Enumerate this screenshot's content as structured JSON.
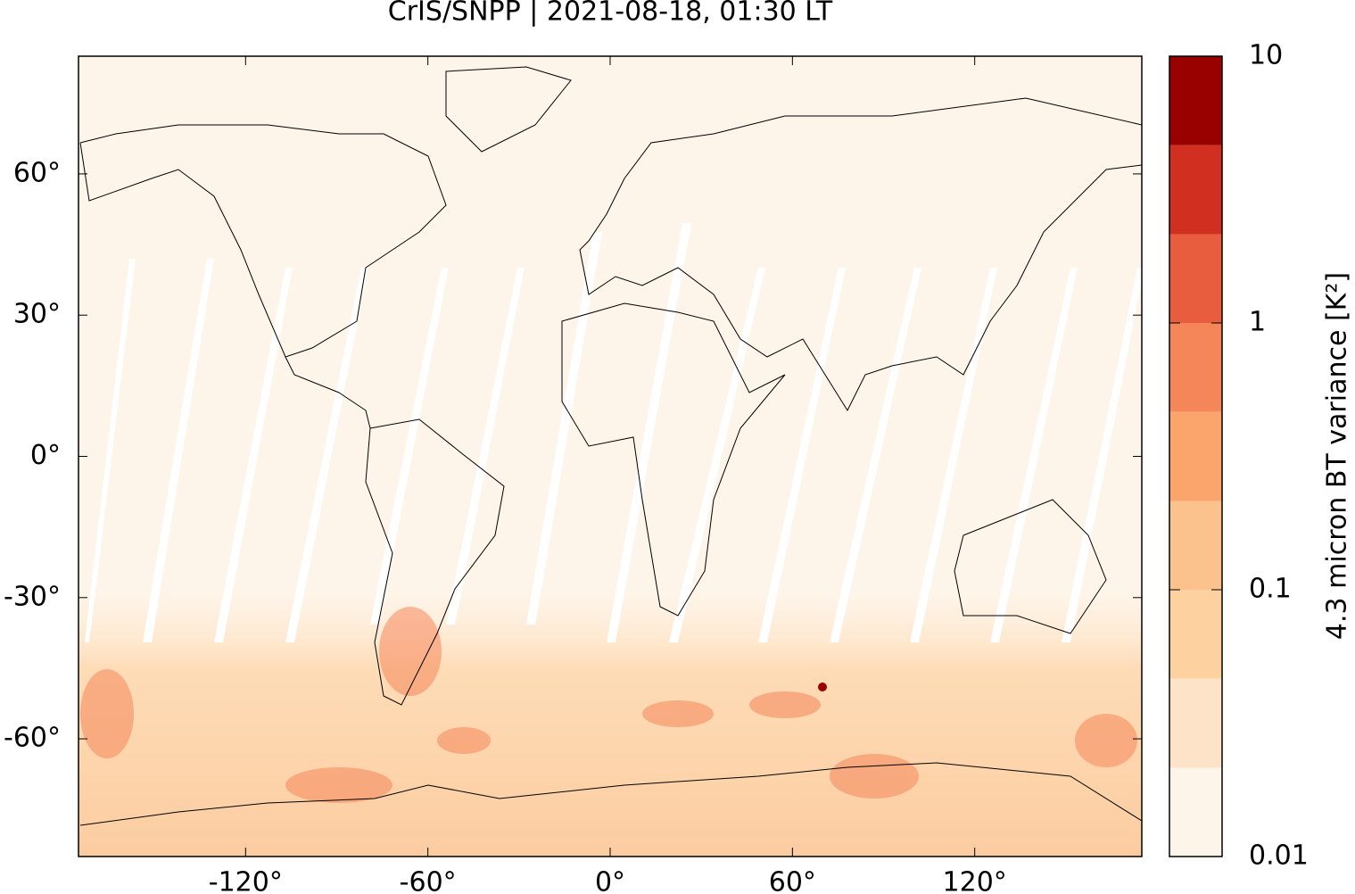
{
  "chart_data": {
    "type": "map",
    "title": "CrIS/SNPP | 2021-08-18, 01:30 LT",
    "xlim": [
      -175,
      175
    ],
    "ylim": [
      -85,
      85
    ],
    "xticks": [
      {
        "value": -120,
        "label": "-120°"
      },
      {
        "value": -60,
        "label": "-60°"
      },
      {
        "value": 0,
        "label": "0°"
      },
      {
        "value": 60,
        "label": "60°"
      },
      {
        "value": 120,
        "label": "120°"
      }
    ],
    "yticks": [
      {
        "value": -60,
        "label": "-60°"
      },
      {
        "value": -30,
        "label": "-30°"
      },
      {
        "value": 0,
        "label": "0°"
      },
      {
        "value": 30,
        "label": "30°"
      },
      {
        "value": 60,
        "label": "60°"
      }
    ],
    "colorbar": {
      "label": "4.3 micron BT variance [K²]",
      "scale": "log",
      "lim": [
        0.01,
        10
      ],
      "ticks": [
        0.01,
        0.1,
        1,
        10
      ],
      "levels": [
        0.01,
        0.0215,
        0.0464,
        0.1,
        0.215,
        0.464,
        1,
        2.15,
        4.64,
        10
      ],
      "colors": [
        "#fef5ea",
        "#fde4c9",
        "#fdd1a0",
        "#fcc28e",
        "#fba46c",
        "#f5865a",
        "#e85d3e",
        "#d12f1f",
        "#990000"
      ]
    }
  }
}
